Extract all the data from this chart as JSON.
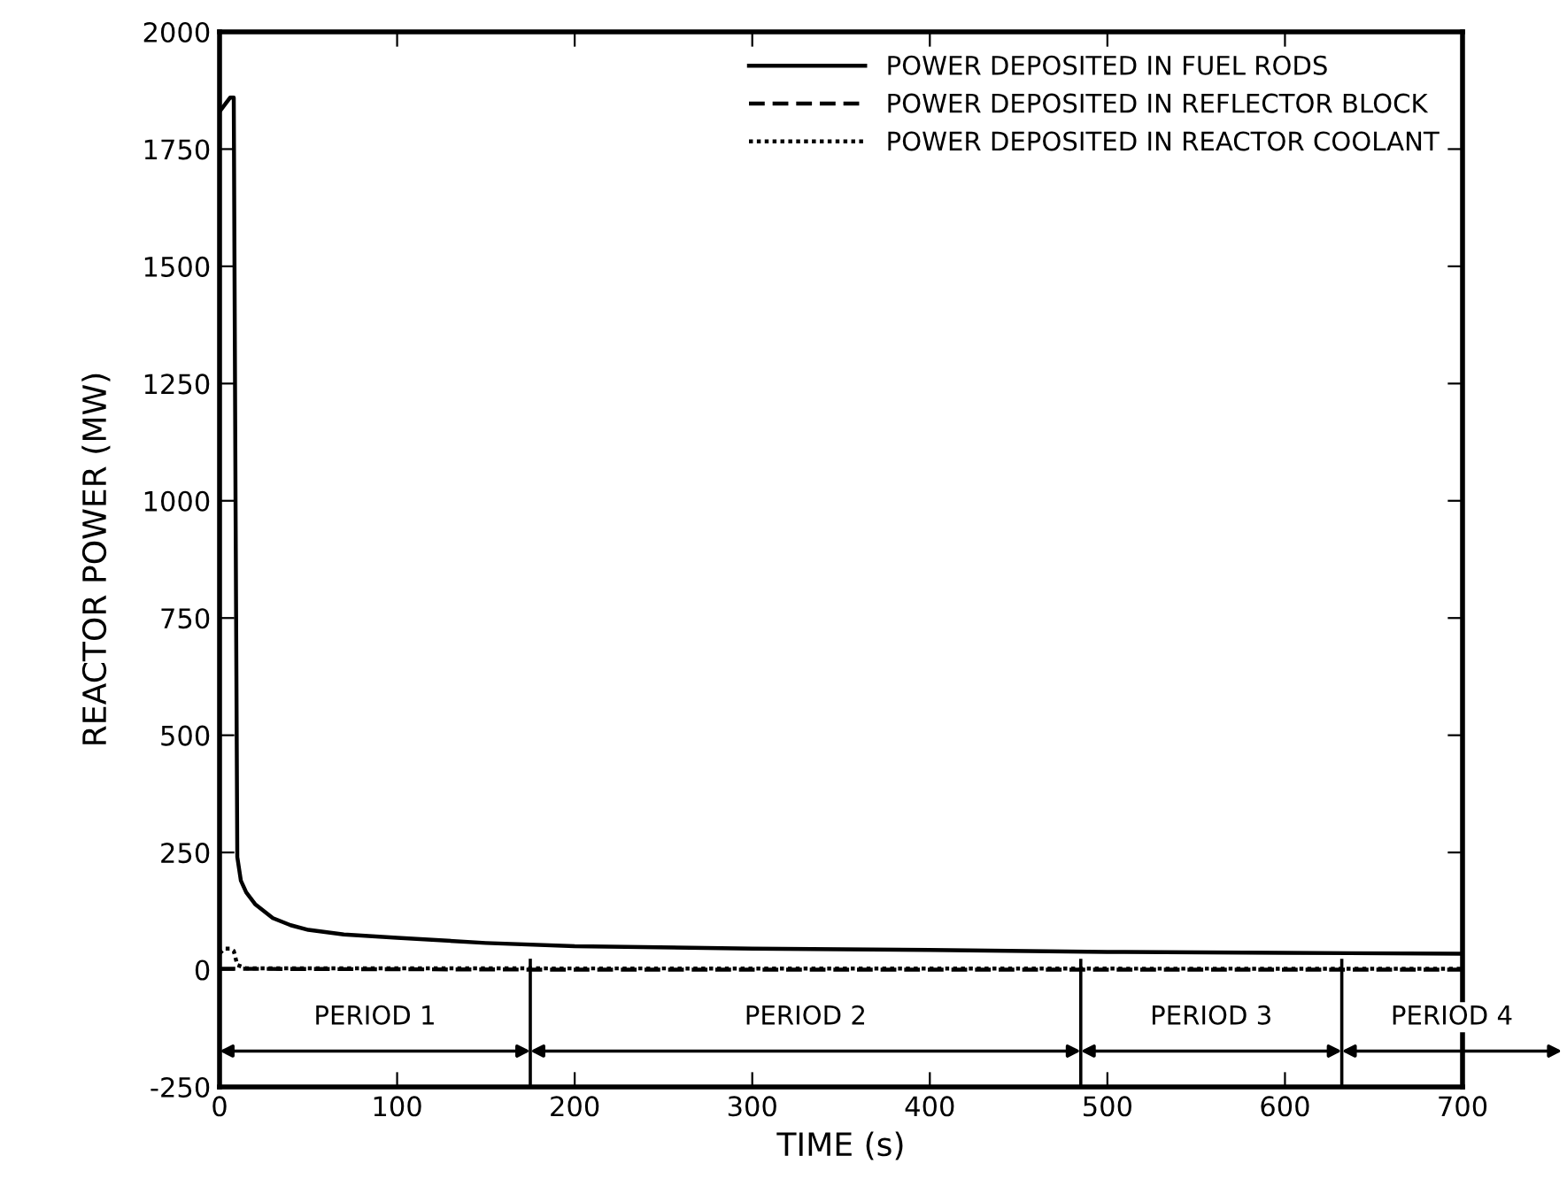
{
  "chart_data": {
    "type": "line",
    "xlabel": "TIME (s)",
    "ylabel": "REACTOR POWER (MW)",
    "xlim": [
      0,
      700
    ],
    "ylim": [
      -250,
      2000
    ],
    "xticks": [
      0,
      100,
      200,
      300,
      400,
      500,
      600,
      700
    ],
    "yticks": [
      -250,
      0,
      250,
      500,
      750,
      1000,
      1250,
      1500,
      1750,
      2000
    ],
    "legend": "top right",
    "grid": false,
    "series": [
      {
        "name": "POWER DEPOSITED IN FUEL RODS",
        "color": "#000000",
        "line_style": "solid",
        "x": [
          0,
          3,
          6,
          8,
          9,
          10,
          12,
          15,
          20,
          30,
          40,
          50,
          70,
          100,
          150,
          200,
          300,
          400,
          500,
          600,
          700
        ],
        "values": [
          1830,
          1845,
          1860,
          1860,
          1000,
          240,
          190,
          165,
          140,
          110,
          95,
          85,
          75,
          68,
          57,
          50,
          45,
          42,
          38,
          36,
          34
        ]
      },
      {
        "name": "POWER DEPOSITED IN REFLECTOR BLOCK",
        "color": "#000000",
        "line_style": "dashed",
        "x": [
          0,
          100,
          200,
          300,
          400,
          500,
          600,
          700
        ],
        "values": [
          2,
          1,
          0,
          0,
          0,
          0,
          0,
          0
        ]
      },
      {
        "name": "POWER DEPOSITED IN REACTOR COOLANT",
        "color": "#000000",
        "line_style": "dotted",
        "x": [
          0,
          3,
          6,
          8,
          10,
          15,
          700
        ],
        "values": [
          35,
          45,
          45,
          40,
          10,
          3,
          2
        ]
      }
    ],
    "ref_lines": [
      {
        "axis": "x",
        "value": 175,
        "color": "#000000"
      },
      {
        "axis": "x",
        "value": 485,
        "color": "#000000"
      },
      {
        "axis": "x",
        "value": 632,
        "color": "#000000"
      }
    ],
    "annotations": [
      "PERIOD 1",
      "PERIOD 2",
      "PERIOD 3",
      "PERIOD 4"
    ]
  }
}
